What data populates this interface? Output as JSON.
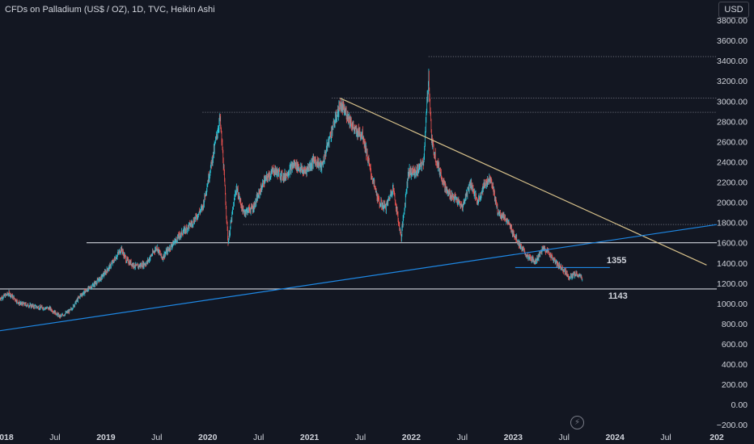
{
  "header": {
    "title": "CFDs on Palladium (US$ / OZ), 1D, TVC, Heikin Ashi",
    "currency_button": "USD"
  },
  "colors": {
    "background": "#131722",
    "up": "#26c6da",
    "down": "#ef5350",
    "white_line": "#d1d4dc",
    "trend_blue": "#1e88e5",
    "trend_tan": "#d6c08a",
    "axis_text": "#d1d4dc"
  },
  "chart_data": {
    "type": "candlestick",
    "chart_style": "Heikin Ashi",
    "yaxis": {
      "ticks": [
        "−200.00",
        "0.00",
        "200.00",
        "400.00",
        "600.00",
        "800.00",
        "1000.00",
        "1200.00",
        "1400.00",
        "1600.00",
        "1800.00",
        "2000.00",
        "2200.00",
        "2400.00",
        "2600.00",
        "2800.00",
        "3000.00",
        "3200.00",
        "3400.00",
        "3600.00",
        "3800.00"
      ],
      "tick_values": [
        -200,
        0,
        200,
        400,
        600,
        800,
        1000,
        1200,
        1400,
        1600,
        1800,
        2000,
        2200,
        2400,
        2600,
        2800,
        3000,
        3200,
        3400,
        3600,
        3800
      ],
      "range": [
        -230,
        4000
      ]
    },
    "xaxis": {
      "ticks": [
        "2018",
        "Jul",
        "2019",
        "Jul",
        "2020",
        "Jul",
        "2021",
        "Jul",
        "2022",
        "Jul",
        "2023",
        "Jul",
        "2024",
        "Jul",
        "202"
      ],
      "tick_dates": [
        2018.0,
        2018.5,
        2019.0,
        2019.5,
        2020.0,
        2020.5,
        2021.0,
        2021.5,
        2022.0,
        2022.5,
        2023.0,
        2023.5,
        2024.0,
        2024.5,
        2025.0
      ],
      "range": [
        2017.96,
        2025.0
      ]
    },
    "price_path": [
      [
        2017.96,
        1050
      ],
      [
        2018.05,
        1100
      ],
      [
        2018.15,
        1000
      ],
      [
        2018.25,
        980
      ],
      [
        2018.35,
        960
      ],
      [
        2018.45,
        950
      ],
      [
        2018.55,
        870
      ],
      [
        2018.65,
        930
      ],
      [
        2018.75,
        1080
      ],
      [
        2018.85,
        1160
      ],
      [
        2018.95,
        1250
      ],
      [
        2019.05,
        1380
      ],
      [
        2019.15,
        1540
      ],
      [
        2019.2,
        1430
      ],
      [
        2019.3,
        1360
      ],
      [
        2019.4,
        1400
      ],
      [
        2019.5,
        1560
      ],
      [
        2019.55,
        1450
      ],
      [
        2019.65,
        1580
      ],
      [
        2019.75,
        1700
      ],
      [
        2019.85,
        1800
      ],
      [
        2019.95,
        1950
      ],
      [
        2020.05,
        2450
      ],
      [
        2020.12,
        2830
      ],
      [
        2020.15,
        2450
      ],
      [
        2020.2,
        1600
      ],
      [
        2020.28,
        2150
      ],
      [
        2020.35,
        1900
      ],
      [
        2020.45,
        1950
      ],
      [
        2020.55,
        2200
      ],
      [
        2020.65,
        2320
      ],
      [
        2020.75,
        2250
      ],
      [
        2020.85,
        2380
      ],
      [
        2020.95,
        2300
      ],
      [
        2021.05,
        2420
      ],
      [
        2021.12,
        2350
      ],
      [
        2021.2,
        2650
      ],
      [
        2021.3,
        2960
      ],
      [
        2021.38,
        2850
      ],
      [
        2021.45,
        2700
      ],
      [
        2021.52,
        2680
      ],
      [
        2021.6,
        2300
      ],
      [
        2021.68,
        2000
      ],
      [
        2021.75,
        1950
      ],
      [
        2021.82,
        2150
      ],
      [
        2021.9,
        1650
      ],
      [
        2021.97,
        2300
      ],
      [
        2022.05,
        2300
      ],
      [
        2022.12,
        2400
      ],
      [
        2022.17,
        3250
      ],
      [
        2022.2,
        2600
      ],
      [
        2022.25,
        2400
      ],
      [
        2022.35,
        2100
      ],
      [
        2022.42,
        2050
      ],
      [
        2022.5,
        1950
      ],
      [
        2022.58,
        2200
      ],
      [
        2022.65,
        2000
      ],
      [
        2022.72,
        2180
      ],
      [
        2022.78,
        2250
      ],
      [
        2022.85,
        1900
      ],
      [
        2022.92,
        1850
      ],
      [
        2023.0,
        1700
      ],
      [
        2023.08,
        1550
      ],
      [
        2023.15,
        1450
      ],
      [
        2023.22,
        1420
      ],
      [
        2023.3,
        1550
      ],
      [
        2023.35,
        1500
      ],
      [
        2023.42,
        1400
      ],
      [
        2023.5,
        1330
      ],
      [
        2023.55,
        1260
      ],
      [
        2023.62,
        1290
      ],
      [
        2023.68,
        1250
      ]
    ],
    "horizontal_levels": [
      {
        "value": 1600,
        "from": 2018.81,
        "to": 2025.0,
        "style": "solid",
        "color": "white"
      },
      {
        "value": 1143,
        "from": 2017.96,
        "to": 2025.0,
        "style": "solid",
        "color": "white",
        "label": "1143"
      },
      {
        "value": 1355,
        "from": 2023.02,
        "to": 2023.95,
        "style": "solid",
        "color": "blue",
        "label": "1355"
      },
      {
        "value": 1780,
        "from": 2020.35,
        "to": 2025.0,
        "style": "dotted"
      },
      {
        "value": 2890,
        "from": 2019.95,
        "to": 2025.0,
        "style": "dotted"
      },
      {
        "value": 3030,
        "from": 2021.22,
        "to": 2025.0,
        "style": "dotted"
      },
      {
        "value": 3440,
        "from": 2022.17,
        "to": 2025.0,
        "style": "dotted"
      }
    ],
    "trendlines": [
      {
        "from": [
          2021.3,
          3030
        ],
        "to": [
          2024.9,
          1380
        ],
        "color": "tan"
      },
      {
        "from": [
          2017.96,
          730
        ],
        "to": [
          2025.0,
          1780
        ],
        "color": "blue"
      }
    ]
  }
}
